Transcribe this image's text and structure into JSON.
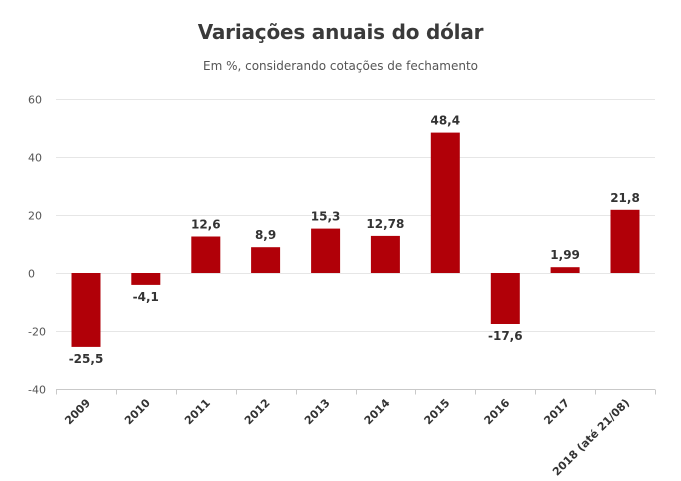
{
  "chart_data": {
    "type": "bar",
    "title": "Variações anuais do dólar",
    "subtitle": "Em %, considerando cotações de fechamento",
    "xlabel": "",
    "ylabel": "",
    "categories": [
      "2009",
      "2010",
      "2011",
      "2012",
      "2013",
      "2014",
      "2015",
      "2016",
      "2017",
      "2018 (até 21/08)"
    ],
    "values": [
      -25.5,
      -4.1,
      12.6,
      8.9,
      15.3,
      12.78,
      48.4,
      -17.6,
      1.99,
      21.8
    ],
    "data_labels": [
      "-25,5",
      "-4,1",
      "12,6",
      "8,9",
      "15,3",
      "12,78",
      "48,4",
      "-17,6",
      "1,99",
      "21,8"
    ],
    "ylim": [
      -40,
      60
    ],
    "yticks": [
      60,
      40,
      20,
      0,
      -20,
      -40
    ],
    "grid": true,
    "legend": "none",
    "bar_color": "#b10008"
  }
}
